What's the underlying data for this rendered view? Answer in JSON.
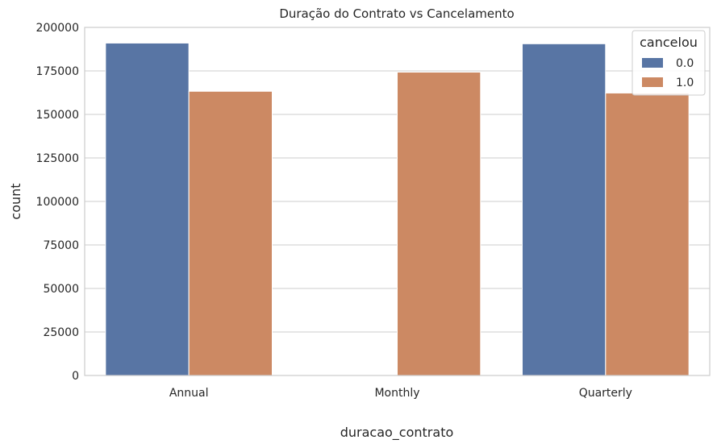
{
  "chart_data": {
    "type": "bar",
    "title": "Duração do Contrato vs Cancelamento",
    "xlabel": "duracao_contrato",
    "ylabel": "count",
    "categories": [
      "Annual",
      "Monthly",
      "Quarterly"
    ],
    "series": [
      {
        "name": "0.0",
        "color": "#5875a4",
        "values": [
          191000,
          0,
          190600
        ]
      },
      {
        "name": "1.0",
        "color": "#cc8963",
        "values": [
          163300,
          174300,
          162300
        ]
      }
    ],
    "ylim": [
      0,
      200000
    ],
    "yticks": [
      0,
      25000,
      50000,
      75000,
      100000,
      125000,
      150000,
      175000,
      200000
    ],
    "grid": true,
    "legend": {
      "title": "cancelou",
      "placement": "top-right"
    }
  }
}
